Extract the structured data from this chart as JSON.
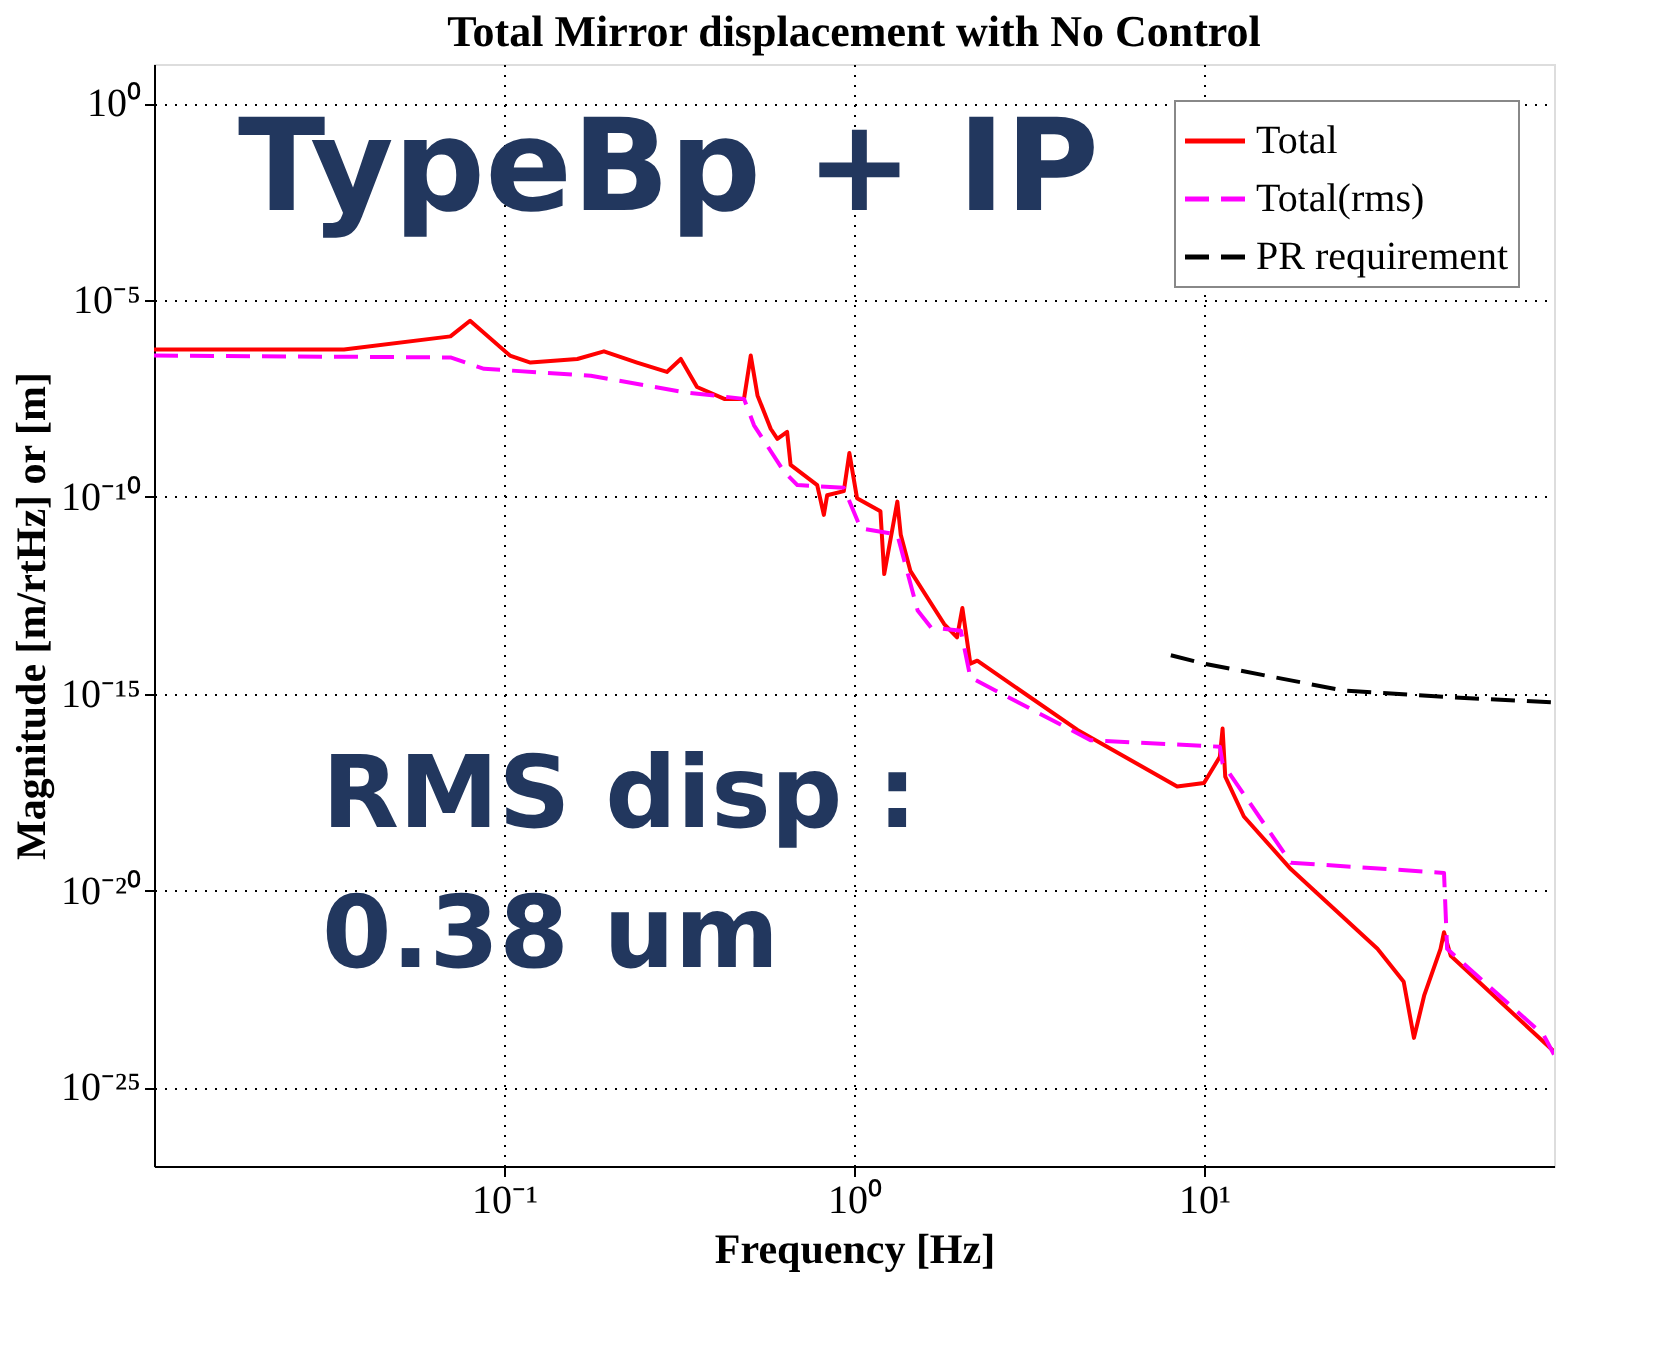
{
  "chart_data": {
    "type": "line",
    "title": "Total Mirror displacement with No Control",
    "xlabel": "Frequency [Hz]",
    "ylabel": "Magnitude [m/rtHz] or [m]",
    "log": "xy",
    "grid": true,
    "legend": "top right",
    "xlim": [
      0.01,
      100
    ],
    "ylim": [
      1e-27,
      10
    ],
    "xticks": [
      {
        "value": 0.1,
        "label": "10⁻¹"
      },
      {
        "value": 1,
        "label": "10⁰"
      },
      {
        "value": 10,
        "label": "10¹"
      }
    ],
    "yticks": [
      {
        "value": 1,
        "label": "10⁰"
      },
      {
        "value": 1e-05,
        "label": "10⁻⁵"
      },
      {
        "value": 1e-10,
        "label": "10⁻¹⁰"
      },
      {
        "value": 1e-15,
        "label": "10⁻¹⁵"
      },
      {
        "value": 1e-20,
        "label": "10⁻²⁰"
      },
      {
        "value": 1e-25,
        "label": "10⁻²⁵"
      }
    ],
    "annotations": [
      "TypeBp + IP",
      "RMS disp :\n0.38 um"
    ],
    "series": [
      {
        "name": "Total",
        "color": "#ff0000",
        "line_style": "solid",
        "x": [
          0.01,
          0.0349,
          0.0703,
          0.08,
          0.104,
          0.119,
          0.162,
          0.193,
          0.24,
          0.292,
          0.32,
          0.356,
          0.426,
          0.485,
          0.507,
          0.53,
          0.578,
          0.604,
          0.644,
          0.659,
          0.785,
          0.82,
          0.838,
          0.935,
          0.97,
          1.02,
          1.19,
          1.22,
          1.33,
          1.36,
          1.45,
          1.81,
          1.97,
          2.04,
          2.15,
          2.25,
          4.35,
          8.38,
          10,
          11.1,
          11.3,
          11.5,
          13.0,
          17.7,
          31.3,
          37.2,
          39.8,
          42.6,
          47.4,
          48.5,
          50.7,
          100
        ],
        "values": [
          5.6e-07,
          5.6e-07,
          1.2e-06,
          3e-06,
          3.9e-07,
          2.6e-07,
          3.2e-07,
          5e-07,
          2.6e-07,
          1.5e-07,
          3.2e-07,
          6.2e-08,
          3.1e-08,
          3.1e-08,
          3.9e-07,
          3.8e-08,
          5.4e-09,
          3e-09,
          4.5e-09,
          6.5e-10,
          2e-10,
          3.5e-11,
          1.1e-10,
          1.4e-10,
          1.3e-09,
          9.3e-11,
          4.3e-11,
          1.1e-12,
          7.6e-11,
          1.1e-11,
          1.3e-12,
          5.9e-14,
          2.7e-14,
          1.5e-13,
          5.8e-15,
          6.9e-15,
          1.2e-16,
          4.4e-18,
          5.4e-18,
          2.5e-17,
          1.3e-16,
          7.8e-18,
          7.6e-19,
          3.5e-20,
          3.3e-22,
          4.8e-23,
          1.8e-24,
          2.2e-23,
          3.3e-22,
          8.7e-22,
          2.2e-22,
          8.1e-25
        ]
      },
      {
        "name": "Total(rms)",
        "color": "#ff00ff",
        "line_style": "dashed",
        "x": [
          0.01,
          0.0703,
          0.0877,
          0.177,
          0.326,
          0.485,
          0.518,
          0.631,
          0.689,
          0.935,
          1.045,
          1.33,
          1.52,
          1.66,
          2.02,
          2.15,
          4.74,
          11.1,
          11.3,
          17.7,
          48.5,
          49.5,
          93.5,
          100
        ],
        "values": [
          3.9e-07,
          3.5e-07,
          1.8e-07,
          1.2e-07,
          4.6e-08,
          3.1e-08,
          6.6e-09,
          4.4e-10,
          2e-10,
          1.7e-10,
          1.6e-11,
          1.1e-11,
          1.3e-13,
          4.8e-14,
          4e-14,
          2.6e-15,
          6.6e-17,
          4.5e-17,
          1.7e-17,
          5.1e-20,
          2.8e-20,
          3.3e-22,
          2.1e-24,
          6.8e-25
        ]
      },
      {
        "name": "PR requirement",
        "color": "#000000",
        "line_style": "dashed",
        "x": [
          8.04,
          10,
          25.1,
          48.5,
          100
        ],
        "values": [
          9.5e-15,
          5.8e-15,
          1.2e-15,
          8.3e-16,
          6e-16
        ]
      }
    ]
  }
}
